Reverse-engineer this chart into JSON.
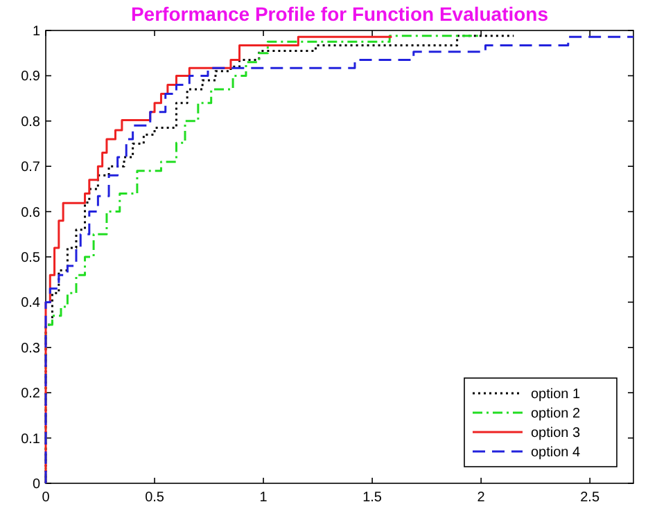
{
  "chart_data": {
    "type": "step",
    "title": "Performance Profile for Function Evaluations",
    "xlim": [
      0,
      2.7
    ],
    "ylim": [
      0,
      1
    ],
    "xticks": [
      0,
      0.5,
      1,
      1.5,
      2,
      2.5
    ],
    "yticks": [
      0,
      0.1,
      0.2,
      0.3,
      0.4,
      0.5,
      0.6,
      0.7,
      0.8,
      0.9,
      1
    ],
    "grid": false,
    "legend": "bottom right",
    "marker": "none",
    "series": [
      {
        "name": "option 1",
        "color": "#000000",
        "line_style": "dotted",
        "x": [
          0,
          0,
          0.03,
          0.06,
          0.1,
          0.14,
          0.18,
          0.2,
          0.24,
          0.29,
          0.36,
          0.4,
          0.45,
          0.5,
          0.6,
          0.65,
          0.72,
          0.78,
          0.85,
          0.89,
          0.98,
          1.24,
          1.89,
          2.15
        ],
        "values": [
          0,
          0.35,
          0.42,
          0.47,
          0.52,
          0.56,
          0.62,
          0.65,
          0.68,
          0.7,
          0.72,
          0.75,
          0.77,
          0.785,
          0.84,
          0.87,
          0.89,
          0.91,
          0.92,
          0.935,
          0.955,
          0.967,
          0.988,
          0.988
        ]
      },
      {
        "name": "option 2",
        "color": "#22dd22",
        "line_style": "dashdot",
        "x": [
          0,
          0,
          0.03,
          0.07,
          0.1,
          0.14,
          0.18,
          0.22,
          0.28,
          0.34,
          0.42,
          0.53,
          0.6,
          0.64,
          0.7,
          0.76,
          0.86,
          0.92,
          0.98,
          1.02,
          1.58,
          2.0
        ],
        "values": [
          0,
          0.35,
          0.37,
          0.39,
          0.42,
          0.46,
          0.5,
          0.55,
          0.6,
          0.64,
          0.69,
          0.71,
          0.752,
          0.8,
          0.84,
          0.87,
          0.9,
          0.93,
          0.95,
          0.975,
          0.988,
          0.988
        ]
      },
      {
        "name": "option 3",
        "color": "#ee2222",
        "line_style": "solid",
        "x": [
          0,
          0,
          0.02,
          0.04,
          0.06,
          0.08,
          0.18,
          0.2,
          0.24,
          0.26,
          0.28,
          0.32,
          0.35,
          0.48,
          0.5,
          0.53,
          0.56,
          0.6,
          0.66,
          0.85,
          0.89,
          1.16,
          1.59
        ],
        "values": [
          0,
          0.4,
          0.46,
          0.52,
          0.58,
          0.619,
          0.64,
          0.67,
          0.7,
          0.73,
          0.76,
          0.78,
          0.802,
          0.82,
          0.84,
          0.86,
          0.88,
          0.9,
          0.917,
          0.935,
          0.967,
          0.986,
          0.986
        ]
      },
      {
        "name": "option 4",
        "color": "#2222dd",
        "line_style": "dashed",
        "x": [
          0,
          0,
          0.02,
          0.06,
          0.1,
          0.14,
          0.16,
          0.2,
          0.24,
          0.29,
          0.33,
          0.37,
          0.4,
          0.48,
          0.55,
          0.6,
          0.66,
          0.745,
          1.42,
          1.69,
          2.02,
          2.4,
          2.7
        ],
        "values": [
          0,
          0.4,
          0.43,
          0.46,
          0.48,
          0.517,
          0.55,
          0.6,
          0.634,
          0.68,
          0.72,
          0.76,
          0.79,
          0.82,
          0.86,
          0.88,
          0.9,
          0.917,
          0.935,
          0.953,
          0.967,
          0.986,
          0.986
        ]
      }
    ]
  }
}
